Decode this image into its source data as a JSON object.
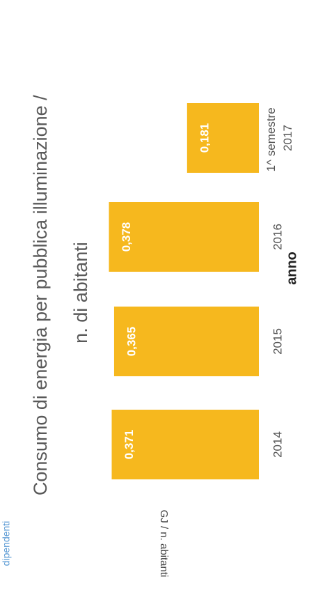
{
  "side_text": "dipendenti",
  "chart_data": {
    "type": "bar",
    "title": "Consumo di energia per pubblica illuminazione / n. di abitanti",
    "y_label": "GJ / n. abitanti",
    "x_label": "anno",
    "categories": [
      "2014",
      "2015",
      "2016",
      "1^ semestre 2017"
    ],
    "values": [
      0.371,
      0.365,
      0.378,
      0.181
    ],
    "value_labels": [
      "0,371",
      "0,365",
      "0,378",
      "0,181"
    ],
    "color": "#f6b81e",
    "ylim": [
      0,
      0.4
    ]
  }
}
